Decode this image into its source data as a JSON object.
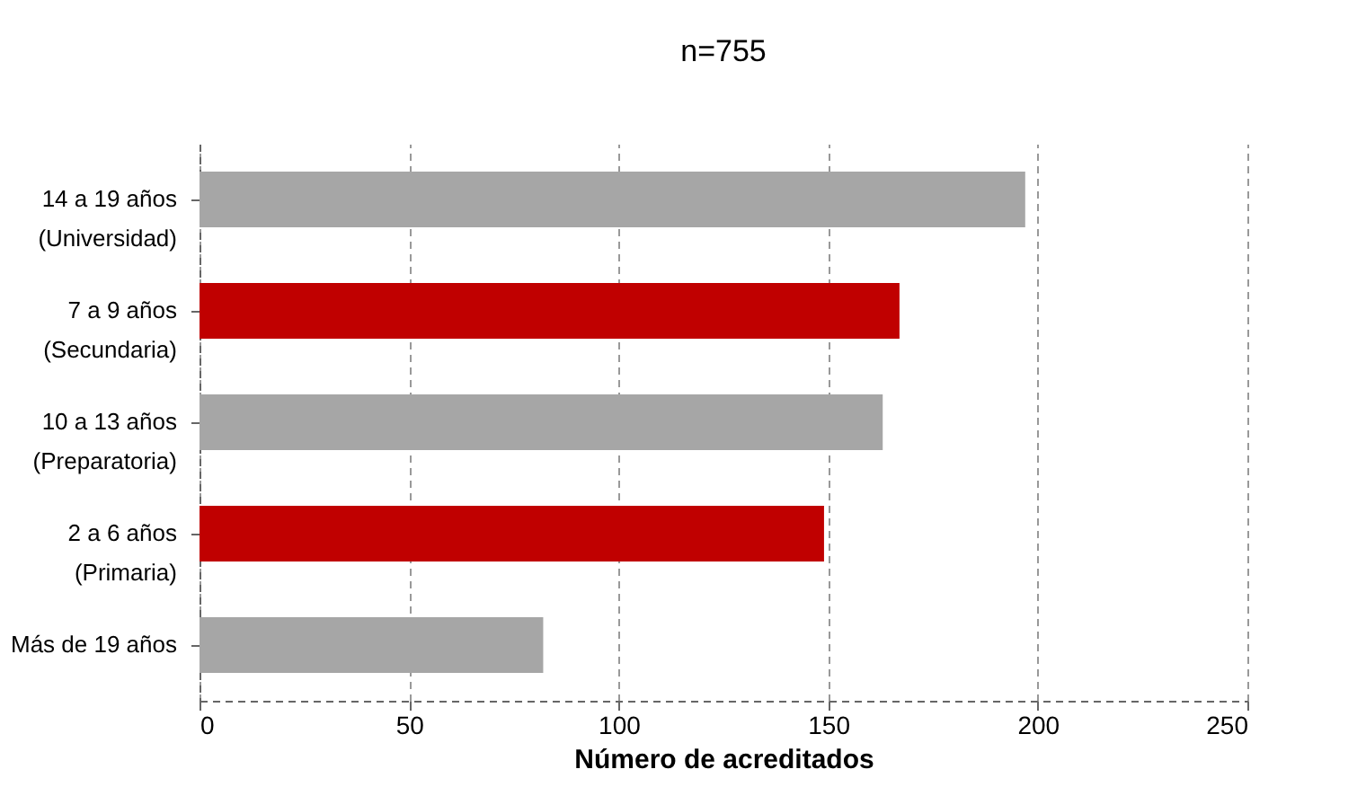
{
  "chart_data": {
    "type": "bar",
    "orientation": "horizontal",
    "title": "n=755",
    "xlabel": "Número de acreditados",
    "categories": [
      "14 a 19 años\n(Universidad)",
      "7 a 9 años\n(Secundaria)",
      "10 a 13 años\n(Preparatoria)",
      "2 a 6 años\n(Primaria)",
      "Más de 19 años"
    ],
    "values": [
      197,
      167,
      163,
      149,
      82
    ],
    "colors": [
      "#a6a6a6",
      "#c00000",
      "#a6a6a6",
      "#c00000",
      "#a6a6a6"
    ],
    "xlim": [
      0,
      250
    ],
    "xticks": [
      0,
      50,
      100,
      150,
      200,
      250
    ],
    "grid": "x"
  }
}
